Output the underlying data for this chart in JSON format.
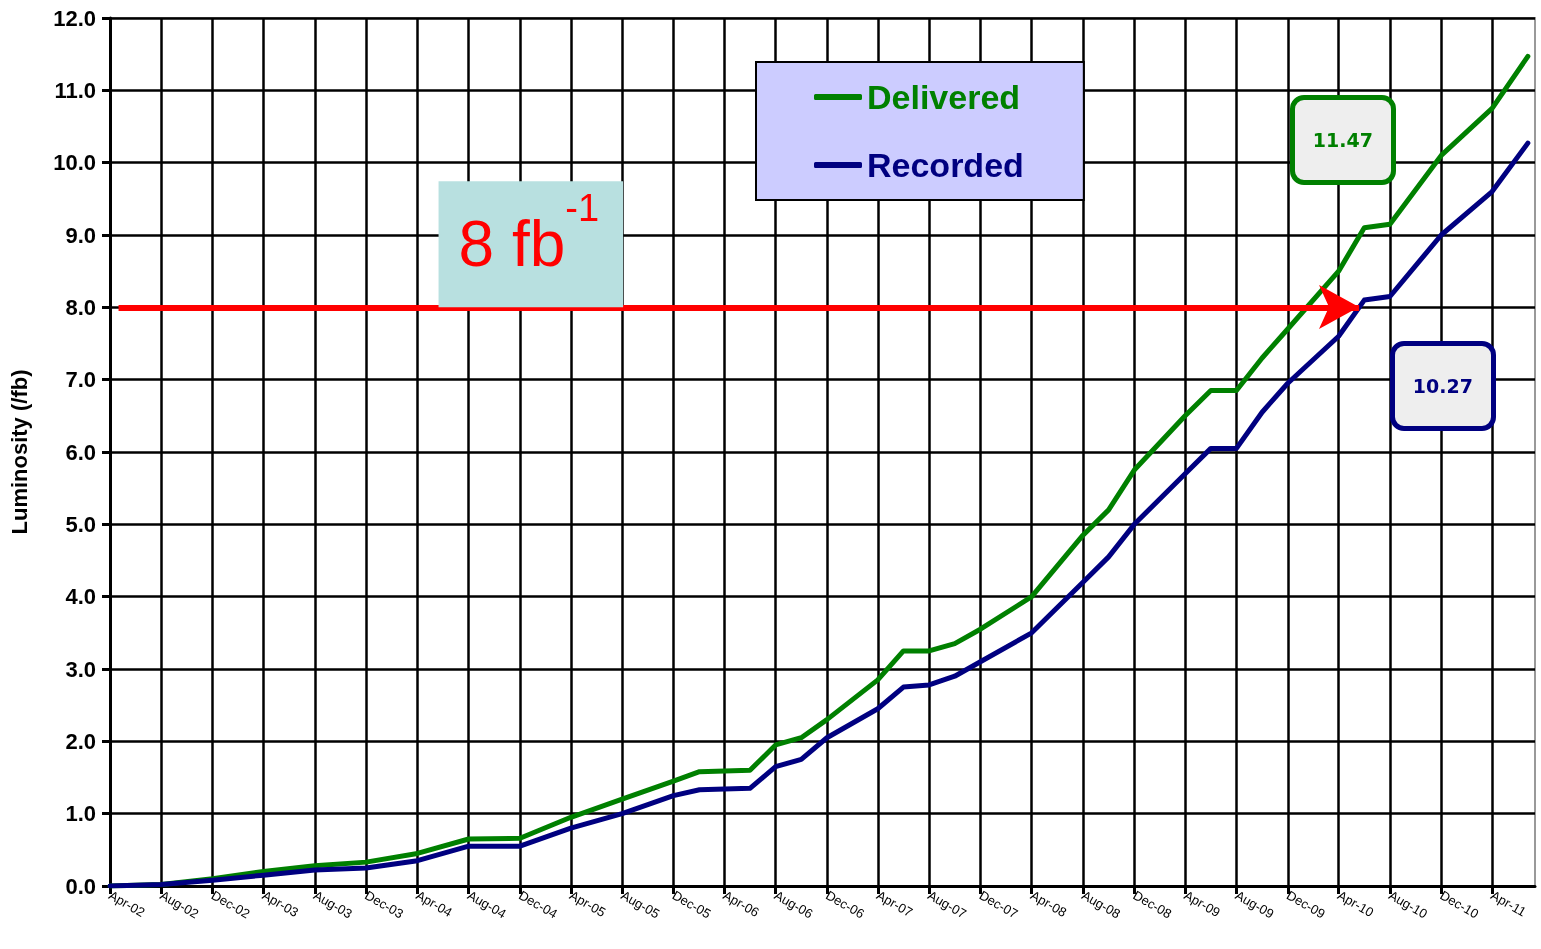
{
  "chart_data": {
    "type": "line",
    "ylabel": "Luminosity (/fb)",
    "series": [
      {
        "name": "Delivered",
        "color": "#008000",
        "x": [
          "2002-04",
          "2002-08",
          "2002-12",
          "2003-04",
          "2003-08",
          "2003-12",
          "2004-04",
          "2004-08",
          "2004-12",
          "2005-04",
          "2005-08",
          "2005-12",
          "2006-02",
          "2006-06",
          "2006-08",
          "2006-10",
          "2006-12",
          "2007-04",
          "2007-06",
          "2007-08",
          "2007-10",
          "2007-12",
          "2008-04",
          "2008-08",
          "2008-10",
          "2008-12",
          "2009-04",
          "2009-06",
          "2009-08",
          "2009-10",
          "2009-12",
          "2010-04",
          "2010-06",
          "2010-08",
          "2010-12",
          "2011-04",
          "2011-06-25"
        ],
        "values": [
          0,
          0.02,
          0.1,
          0.2,
          0.28,
          0.33,
          0.45,
          0.65,
          0.66,
          0.95,
          1.2,
          1.45,
          1.58,
          1.6,
          1.95,
          2.05,
          2.3,
          2.85,
          3.25,
          3.25,
          3.35,
          3.55,
          4.0,
          4.85,
          5.2,
          5.75,
          6.5,
          6.85,
          6.85,
          7.3,
          7.7,
          8.5,
          9.1,
          9.15,
          10.1,
          10.75,
          11.47
        ]
      },
      {
        "name": "Recorded",
        "color": "#000080",
        "x": [
          "2002-04",
          "2002-08",
          "2002-12",
          "2003-04",
          "2003-08",
          "2003-12",
          "2004-04",
          "2004-08",
          "2004-12",
          "2005-04",
          "2005-08",
          "2005-12",
          "2006-02",
          "2006-06",
          "2006-08",
          "2006-10",
          "2006-12",
          "2007-04",
          "2007-06",
          "2007-08",
          "2007-10",
          "2007-12",
          "2008-04",
          "2008-08",
          "2008-10",
          "2008-12",
          "2009-04",
          "2009-06",
          "2009-08",
          "2009-10",
          "2009-12",
          "2010-04",
          "2010-06",
          "2010-08",
          "2010-12",
          "2011-04",
          "2011-06-25"
        ],
        "values": [
          0,
          0.02,
          0.08,
          0.15,
          0.22,
          0.25,
          0.35,
          0.55,
          0.55,
          0.8,
          1.0,
          1.25,
          1.33,
          1.35,
          1.65,
          1.75,
          2.05,
          2.45,
          2.75,
          2.78,
          2.9,
          3.1,
          3.5,
          4.2,
          4.55,
          5.0,
          5.7,
          6.05,
          6.05,
          6.55,
          6.95,
          7.6,
          8.1,
          8.15,
          9.0,
          9.6,
          10.27
        ]
      }
    ],
    "xlim": [
      "2002-04",
      "2011-07-12"
    ],
    "xticks": [
      {
        "value": "2002-04",
        "label": "Apr-02"
      },
      {
        "value": "2002-08",
        "label": "Aug-02"
      },
      {
        "value": "2002-12",
        "label": "Dec-02"
      },
      {
        "value": "2003-04",
        "label": "Apr-03"
      },
      {
        "value": "2003-08",
        "label": "Aug-03"
      },
      {
        "value": "2003-12",
        "label": "Dec-03"
      },
      {
        "value": "2004-04",
        "label": "Apr-04"
      },
      {
        "value": "2004-08",
        "label": "Aug-04"
      },
      {
        "value": "2004-12",
        "label": "Dec-04"
      },
      {
        "value": "2005-04",
        "label": "Apr-05"
      },
      {
        "value": "2005-08",
        "label": "Aug-05"
      },
      {
        "value": "2005-12",
        "label": "Dec-05"
      },
      {
        "value": "2006-04",
        "label": "Apr-06"
      },
      {
        "value": "2006-08",
        "label": "Aug-06"
      },
      {
        "value": "2006-12",
        "label": "Dec-06"
      },
      {
        "value": "2007-04",
        "label": "Apr-07"
      },
      {
        "value": "2007-08",
        "label": "Aug-07"
      },
      {
        "value": "2007-12",
        "label": "Dec-07"
      },
      {
        "value": "2008-04",
        "label": "Apr-08"
      },
      {
        "value": "2008-08",
        "label": "Aug-08"
      },
      {
        "value": "2008-12",
        "label": "Dec-08"
      },
      {
        "value": "2009-04",
        "label": "Apr-09"
      },
      {
        "value": "2009-08",
        "label": "Aug-09"
      },
      {
        "value": "2009-12",
        "label": "Dec-09"
      },
      {
        "value": "2010-04",
        "label": "Apr-10"
      },
      {
        "value": "2010-08",
        "label": "Aug-10"
      },
      {
        "value": "2010-12",
        "label": "Dec-10"
      },
      {
        "value": "2011-04",
        "label": "Apr-11"
      }
    ],
    "ylim": [
      0,
      12
    ],
    "yticks": [
      {
        "value": 0,
        "label": "0.0"
      },
      {
        "value": 1,
        "label": "1.0"
      },
      {
        "value": 2,
        "label": "2.0"
      },
      {
        "value": 3,
        "label": "3.0"
      },
      {
        "value": 4,
        "label": "4.0"
      },
      {
        "value": 5,
        "label": "5.0"
      },
      {
        "value": 6,
        "label": "6.0"
      },
      {
        "value": 7,
        "label": "7.0"
      },
      {
        "value": 8,
        "label": "8.0"
      },
      {
        "value": 9,
        "label": "9.0"
      },
      {
        "value": 10,
        "label": "10.0"
      },
      {
        "value": 11,
        "label": "11.0"
      },
      {
        "value": 12,
        "label": "12.0"
      }
    ],
    "grid": true,
    "legend": "top",
    "marker": "none",
    "line_style": "solid",
    "ref_lines": [
      {
        "axis": "y",
        "value": 8,
        "label": "8 fb$^{-1}$",
        "color": "#ff0000"
      }
    ],
    "annotations": [
      "11.47",
      "10.27"
    ]
  }
}
